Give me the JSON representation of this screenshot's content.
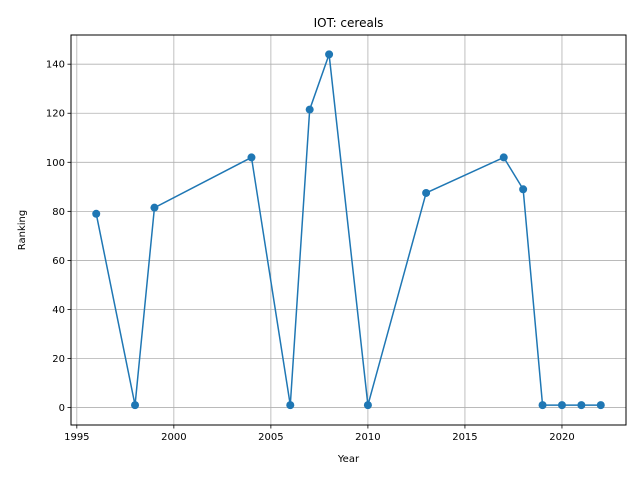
{
  "chart_data": {
    "type": "line",
    "title": "IOT: cereals",
    "xlabel": "Year",
    "ylabel": "Ranking",
    "xlim": [
      1994.7,
      1995.0,
      2023.3
    ],
    "ylim": [
      -7.1,
      151.9
    ],
    "xticks": [
      1995,
      2000,
      2005,
      2010,
      2015,
      2020
    ],
    "yticks": [
      0,
      20,
      40,
      60,
      80,
      100,
      120,
      140
    ],
    "grid": true,
    "color": "#1f77b4",
    "series": [
      {
        "x": [
          1996,
          1998,
          1999,
          2004,
          2006,
          2007,
          2008,
          2010,
          2013,
          2017,
          2018,
          2019,
          2020,
          2021,
          2022
        ],
        "y": [
          79,
          1,
          81.5,
          102,
          1,
          121.5,
          144,
          1,
          87.5,
          102,
          89,
          1,
          1,
          1,
          1
        ]
      }
    ]
  }
}
